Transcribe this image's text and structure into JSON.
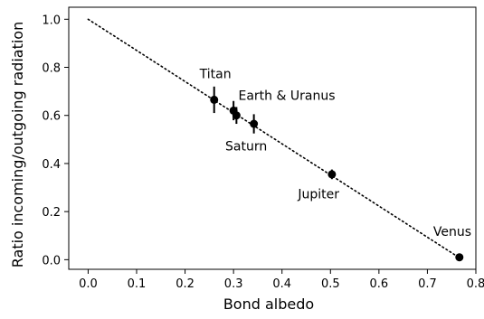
{
  "chart_data": {
    "type": "scatter",
    "xlabel": "Bond albedo",
    "ylabel": "Ratio incoming/outgoing radiation",
    "xlim": [
      -0.04,
      0.8
    ],
    "ylim": [
      -0.04,
      1.05
    ],
    "x_ticks": [
      0.0,
      0.1,
      0.2,
      0.3,
      0.4,
      0.5,
      0.6,
      0.7,
      0.8
    ],
    "x_tick_labels": [
      "0.0",
      "0.1",
      "0.2",
      "0.3",
      "0.4",
      "0.5",
      "0.6",
      "0.7",
      "0.8"
    ],
    "y_ticks": [
      0.0,
      0.2,
      0.4,
      0.6,
      0.8,
      1.0
    ],
    "y_tick_labels": [
      "0.0",
      "0.2",
      "0.4",
      "0.6",
      "0.8",
      "1.0"
    ],
    "grid": false,
    "reference_line": {
      "style": "dotted",
      "x": [
        0.0,
        0.766
      ],
      "y": [
        1.0,
        0.008
      ]
    },
    "points": [
      {
        "x": 0.26,
        "y": 0.665,
        "yerr": 0.055
      },
      {
        "x": 0.3,
        "y": 0.62,
        "yerr": 0.04
      },
      {
        "x": 0.306,
        "y": 0.6,
        "yerr": 0.035
      },
      {
        "x": 0.342,
        "y": 0.565,
        "yerr": 0.04
      },
      {
        "x": 0.503,
        "y": 0.355,
        "yerr": 0.02
      },
      {
        "x": 0.766,
        "y": 0.01,
        "yerr": 0.0
      }
    ],
    "annotations": [
      {
        "text": "Titan",
        "x": 0.23,
        "y": 0.755
      },
      {
        "text": "Earth & Uranus",
        "x": 0.31,
        "y": 0.665
      },
      {
        "text": "Saturn",
        "x": 0.283,
        "y": 0.455
      },
      {
        "text": "Jupiter",
        "x": 0.433,
        "y": 0.255
      },
      {
        "text": "Venus",
        "x": 0.712,
        "y": 0.1
      }
    ]
  }
}
